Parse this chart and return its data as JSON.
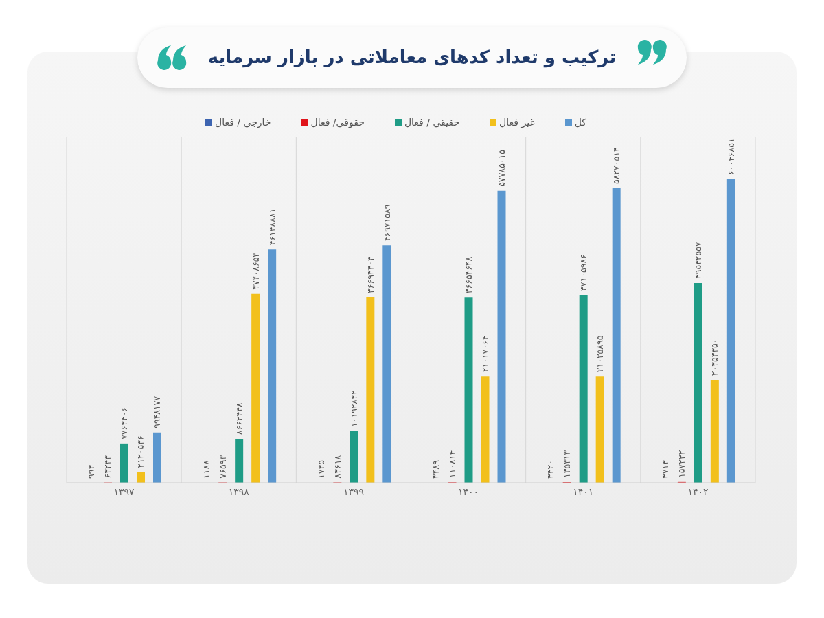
{
  "chart_data": {
    "type": "bar",
    "title": "ترکیب و تعداد کدهای معاملاتی در بازار سرمایه",
    "categories": [
      "۱۳۹۷",
      "۱۳۹۸",
      "۱۳۹۹",
      "۱۴۰۰",
      "۱۴۰۱",
      "۱۴۰۲"
    ],
    "series": [
      {
        "name": "خارجی / فعال",
        "color": "#3d64b0",
        "values": [
          993,
          1188,
          1735,
          3489,
          3320,
          3713
        ],
        "value_labels": [
          "۹۹۳",
          "۱۱۸۸",
          "۱۷۳۵",
          "۳۴۸۹",
          "۳۳۲۰",
          "۳۷۱۳"
        ]
      },
      {
        "name": "حقوقی/ فعال",
        "color": "#e0141b",
        "values": [
          63243,
          76593,
          83618,
          110814,
          135313,
          157232
        ],
        "value_labels": [
          "۶۳۲۴۳",
          "۷۶۵۹۳",
          "۸۳۶۱۸",
          "۱۱۰۸۱۴",
          "۱۳۵۳۱۳",
          "۱۵۷۲۳۲"
        ]
      },
      {
        "name": "حقیقی / فعال",
        "color": "#1f9c86",
        "values": [
          7763406,
          8662448,
          10192832,
          36653648,
          37105986,
          39532557
        ],
        "value_labels": [
          "۷۷۶۳۴۰۶",
          "۸۶۶۲۴۴۸",
          "۱۰۱۹۲۸۳۲",
          "۳۶۶۵۳۶۴۸",
          "۳۷۱۰۵۹۸۶",
          "۳۹۵۳۲۵۵۷"
        ]
      },
      {
        "name": "غیر فعال",
        "color": "#f2c01c",
        "values": [
          2120536,
          37408653,
          36693404,
          21017064,
          21025895,
          20353350
        ],
        "value_labels": [
          "۲۱۲۰۵۳۶",
          "۳۷۴۰۸۶۵۳",
          "۳۶۶۹۳۴۰۴",
          "۲۱۰۱۷۰۶۴",
          "۲۱۰۲۵۸۹۵",
          "۲۰۳۵۳۳۵۰"
        ]
      },
      {
        "name": "کل",
        "color": "#5b97cf",
        "values": [
          9948177,
          46148881,
          46971589,
          57785015,
          58270514,
          60046851
        ],
        "value_labels": [
          "۹۹۴۸۱۷۷",
          "۴۶۱۴۸۸۸۱",
          "۴۶۹۷۱۵۸۹",
          "۵۷۷۸۵۰۱۵",
          "۵۸۲۷۰۵۱۴",
          "۶۰۰۴۶۸۵۱"
        ]
      }
    ],
    "grid": "x",
    "legend": "top"
  }
}
